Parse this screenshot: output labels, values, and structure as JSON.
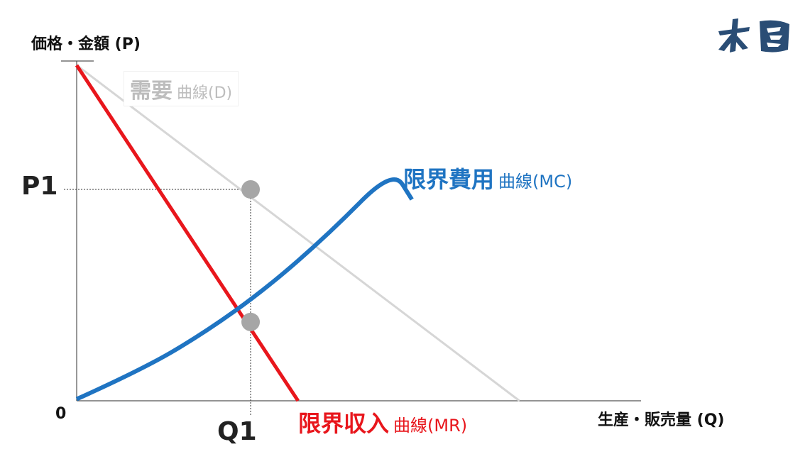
{
  "chart_data": {
    "type": "line",
    "title": "",
    "ylabel": "価格・金額 (P)",
    "xlabel": "生産・販売量 (Q)",
    "origin_label": "0",
    "xlim": [
      0,
      10
    ],
    "ylim": [
      0,
      10
    ],
    "grid": false,
    "series": [
      {
        "name": "需要 曲線(D)",
        "label_main": "需要",
        "label_sub": "曲線(D)",
        "color": "#d6d6d6",
        "x": [
          0,
          7
        ],
        "y": [
          10,
          0
        ]
      },
      {
        "name": "限界収入 曲線(MR)",
        "label_main": "限界収入",
        "label_sub": "曲線(MR)",
        "color": "#e8161c",
        "x": [
          0,
          3.5
        ],
        "y": [
          10,
          0
        ]
      },
      {
        "name": "限界費用 曲線(MC)",
        "label_main": "限界費用",
        "label_sub": "曲線(MC)",
        "color": "#1f74c2",
        "x": [
          0,
          1,
          2,
          3,
          4,
          5,
          5.3
        ],
        "y": [
          0.05,
          0.9,
          2.0,
          3.35,
          5.0,
          6.9,
          6.0
        ]
      }
    ],
    "annotations": {
      "P1": {
        "text": "P1",
        "x": 2.75,
        "y": 6.3
      },
      "Q1": {
        "text": "Q1",
        "x": 2.75,
        "y": 0
      },
      "points": [
        {
          "x": 2.75,
          "y": 6.3,
          "color": "#a6a6a6"
        },
        {
          "x": 2.75,
          "y": 2.35,
          "color": "#a6a6a6"
        }
      ]
    }
  },
  "logo": {
    "name": "logo-icon",
    "color": "#2a4d75"
  }
}
